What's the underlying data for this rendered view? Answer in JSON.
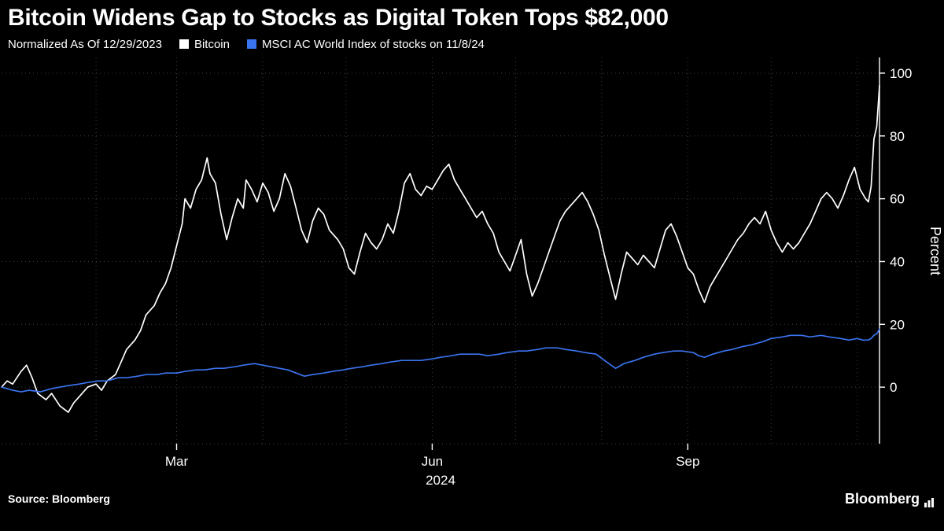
{
  "header": {
    "title": "Bitcoin Widens Gap to Stocks as Digital Token Tops $82,000",
    "legend_note": "Normalized As Of 12/29/2023",
    "legend": [
      {
        "label": "Bitcoin",
        "color": "#ffffff"
      },
      {
        "label": "MSCI AC World Index of stocks on 11/8/24",
        "color": "#3b74f0"
      }
    ]
  },
  "footer": {
    "source_label": "Source:",
    "source_value": "Bloomberg",
    "brand": "Bloomberg"
  },
  "chart_data": {
    "type": "line",
    "title": "Bitcoin Widens Gap to Stocks as Digital Token Tops $82,000",
    "subtitle": "Normalized As Of 12/29/2023",
    "xlabel": "2024",
    "ylabel": "Percent",
    "ylim": [
      -18,
      105
    ],
    "yticks": [
      0,
      20,
      40,
      60,
      80,
      100
    ],
    "x_unit": "days since 2023-12-29",
    "x_range": [
      0,
      316
    ],
    "xticks": [
      {
        "day": 63,
        "label": "Mar"
      },
      {
        "day": 155,
        "label": "Jun"
      },
      {
        "day": 247,
        "label": "Sep"
      }
    ],
    "month_gridlines": [
      34,
      63,
      94,
      124,
      155,
      185,
      216,
      247,
      277,
      308
    ],
    "grid": true,
    "legend_position": "top",
    "background": "#000000",
    "series": [
      {
        "name": "Bitcoin",
        "color": "#ffffff",
        "points": [
          [
            0,
            0
          ],
          [
            2,
            2
          ],
          [
            4,
            1
          ],
          [
            7,
            5
          ],
          [
            9,
            7
          ],
          [
            11,
            3
          ],
          [
            13,
            -2
          ],
          [
            16,
            -4
          ],
          [
            18,
            -2
          ],
          [
            21,
            -6
          ],
          [
            24,
            -8
          ],
          [
            26,
            -5
          ],
          [
            28,
            -3
          ],
          [
            31,
            0
          ],
          [
            34,
            1
          ],
          [
            36,
            -1
          ],
          [
            38,
            2
          ],
          [
            41,
            4
          ],
          [
            43,
            8
          ],
          [
            45,
            12
          ],
          [
            48,
            15
          ],
          [
            50,
            18
          ],
          [
            52,
            23
          ],
          [
            55,
            26
          ],
          [
            57,
            30
          ],
          [
            59,
            33
          ],
          [
            61,
            38
          ],
          [
            63,
            45
          ],
          [
            65,
            52
          ],
          [
            66,
            60
          ],
          [
            68,
            57
          ],
          [
            70,
            63
          ],
          [
            72,
            66
          ],
          [
            74,
            73
          ],
          [
            75,
            68
          ],
          [
            77,
            65
          ],
          [
            79,
            55
          ],
          [
            81,
            47
          ],
          [
            83,
            54
          ],
          [
            85,
            60
          ],
          [
            87,
            57
          ],
          [
            88,
            66
          ],
          [
            90,
            63
          ],
          [
            92,
            59
          ],
          [
            94,
            65
          ],
          [
            96,
            62
          ],
          [
            98,
            56
          ],
          [
            100,
            60
          ],
          [
            102,
            68
          ],
          [
            104,
            64
          ],
          [
            106,
            57
          ],
          [
            108,
            50
          ],
          [
            110,
            46
          ],
          [
            112,
            53
          ],
          [
            114,
            57
          ],
          [
            116,
            55
          ],
          [
            118,
            50
          ],
          [
            121,
            47
          ],
          [
            123,
            44
          ],
          [
            125,
            38
          ],
          [
            127,
            36
          ],
          [
            129,
            43
          ],
          [
            131,
            49
          ],
          [
            133,
            46
          ],
          [
            135,
            44
          ],
          [
            137,
            47
          ],
          [
            139,
            52
          ],
          [
            141,
            49
          ],
          [
            143,
            56
          ],
          [
            145,
            65
          ],
          [
            147,
            68
          ],
          [
            149,
            63
          ],
          [
            151,
            61
          ],
          [
            153,
            64
          ],
          [
            155,
            63
          ],
          [
            157,
            66
          ],
          [
            159,
            69
          ],
          [
            161,
            71
          ],
          [
            163,
            66
          ],
          [
            165,
            63
          ],
          [
            167,
            60
          ],
          [
            169,
            57
          ],
          [
            171,
            54
          ],
          [
            173,
            56
          ],
          [
            175,
            52
          ],
          [
            177,
            49
          ],
          [
            179,
            43
          ],
          [
            181,
            40
          ],
          [
            183,
            37
          ],
          [
            185,
            42
          ],
          [
            187,
            47
          ],
          [
            189,
            36
          ],
          [
            191,
            29
          ],
          [
            193,
            33
          ],
          [
            195,
            38
          ],
          [
            197,
            43
          ],
          [
            199,
            48
          ],
          [
            201,
            53
          ],
          [
            203,
            56
          ],
          [
            205,
            58
          ],
          [
            207,
            60
          ],
          [
            209,
            62
          ],
          [
            211,
            59
          ],
          [
            213,
            55
          ],
          [
            215,
            50
          ],
          [
            217,
            42
          ],
          [
            219,
            35
          ],
          [
            221,
            28
          ],
          [
            223,
            36
          ],
          [
            225,
            43
          ],
          [
            227,
            41
          ],
          [
            229,
            39
          ],
          [
            231,
            42
          ],
          [
            233,
            40
          ],
          [
            235,
            38
          ],
          [
            237,
            44
          ],
          [
            239,
            50
          ],
          [
            241,
            52
          ],
          [
            243,
            48
          ],
          [
            245,
            43
          ],
          [
            247,
            38
          ],
          [
            249,
            36
          ],
          [
            251,
            31
          ],
          [
            253,
            27
          ],
          [
            255,
            32
          ],
          [
            257,
            35
          ],
          [
            259,
            38
          ],
          [
            261,
            41
          ],
          [
            263,
            44
          ],
          [
            265,
            47
          ],
          [
            267,
            49
          ],
          [
            269,
            52
          ],
          [
            271,
            54
          ],
          [
            273,
            52
          ],
          [
            275,
            56
          ],
          [
            277,
            50
          ],
          [
            279,
            46
          ],
          [
            281,
            43
          ],
          [
            283,
            46
          ],
          [
            285,
            44
          ],
          [
            287,
            46
          ],
          [
            289,
            49
          ],
          [
            291,
            52
          ],
          [
            293,
            56
          ],
          [
            295,
            60
          ],
          [
            297,
            62
          ],
          [
            299,
            60
          ],
          [
            301,
            57
          ],
          [
            303,
            61
          ],
          [
            305,
            66
          ],
          [
            307,
            70
          ],
          [
            309,
            63
          ],
          [
            311,
            60
          ],
          [
            312,
            59
          ],
          [
            313,
            64
          ],
          [
            314,
            79
          ],
          [
            315,
            83
          ],
          [
            316,
            96
          ]
        ]
      },
      {
        "name": "MSCI AC World Index of stocks on 11/8/24",
        "color": "#3b74f0",
        "points": [
          [
            0,
            0
          ],
          [
            4,
            -1
          ],
          [
            7,
            -1.5
          ],
          [
            10,
            -1
          ],
          [
            14,
            -1.5
          ],
          [
            18,
            -0.5
          ],
          [
            21,
            0
          ],
          [
            24,
            0.5
          ],
          [
            28,
            1
          ],
          [
            31,
            1.5
          ],
          [
            35,
            2
          ],
          [
            38,
            2
          ],
          [
            42,
            3
          ],
          [
            45,
            3
          ],
          [
            49,
            3.5
          ],
          [
            52,
            4
          ],
          [
            56,
            4
          ],
          [
            59,
            4.5
          ],
          [
            63,
            4.5
          ],
          [
            66,
            5
          ],
          [
            70,
            5.5
          ],
          [
            73,
            5.5
          ],
          [
            77,
            6
          ],
          [
            80,
            6
          ],
          [
            84,
            6.5
          ],
          [
            87,
            7
          ],
          [
            91,
            7.5
          ],
          [
            94,
            7
          ],
          [
            97,
            6.5
          ],
          [
            100,
            6
          ],
          [
            103,
            5.5
          ],
          [
            106,
            4.5
          ],
          [
            109,
            3.5
          ],
          [
            112,
            4
          ],
          [
            116,
            4.5
          ],
          [
            119,
            5
          ],
          [
            123,
            5.5
          ],
          [
            126,
            6
          ],
          [
            130,
            6.5
          ],
          [
            133,
            7
          ],
          [
            137,
            7.5
          ],
          [
            140,
            8
          ],
          [
            144,
            8.5
          ],
          [
            147,
            8.5
          ],
          [
            151,
            8.5
          ],
          [
            155,
            9
          ],
          [
            158,
            9.5
          ],
          [
            162,
            10
          ],
          [
            165,
            10.5
          ],
          [
            168,
            10.5
          ],
          [
            172,
            10.5
          ],
          [
            175,
            10
          ],
          [
            179,
            10.5
          ],
          [
            182,
            11
          ],
          [
            186,
            11.5
          ],
          [
            189,
            11.5
          ],
          [
            193,
            12
          ],
          [
            196,
            12.5
          ],
          [
            200,
            12.5
          ],
          [
            203,
            12
          ],
          [
            207,
            11.5
          ],
          [
            210,
            11
          ],
          [
            214,
            10.5
          ],
          [
            217,
            8.5
          ],
          [
            221,
            6
          ],
          [
            224,
            7.5
          ],
          [
            228,
            8.5
          ],
          [
            231,
            9.5
          ],
          [
            235,
            10.5
          ],
          [
            238,
            11
          ],
          [
            242,
            11.5
          ],
          [
            245,
            11.5
          ],
          [
            249,
            11
          ],
          [
            251,
            10
          ],
          [
            253,
            9.5
          ],
          [
            256,
            10.5
          ],
          [
            260,
            11.5
          ],
          [
            263,
            12
          ],
          [
            267,
            13
          ],
          [
            270,
            13.5
          ],
          [
            274,
            14.5
          ],
          [
            277,
            15.5
          ],
          [
            281,
            16
          ],
          [
            284,
            16.5
          ],
          [
            288,
            16.5
          ],
          [
            291,
            16
          ],
          [
            295,
            16.5
          ],
          [
            298,
            16
          ],
          [
            302,
            15.5
          ],
          [
            305,
            15
          ],
          [
            308,
            15.5
          ],
          [
            310,
            15
          ],
          [
            312,
            15
          ],
          [
            313,
            15.5
          ],
          [
            314,
            16.5
          ],
          [
            315,
            17
          ],
          [
            316,
            18.5
          ]
        ]
      }
    ]
  }
}
